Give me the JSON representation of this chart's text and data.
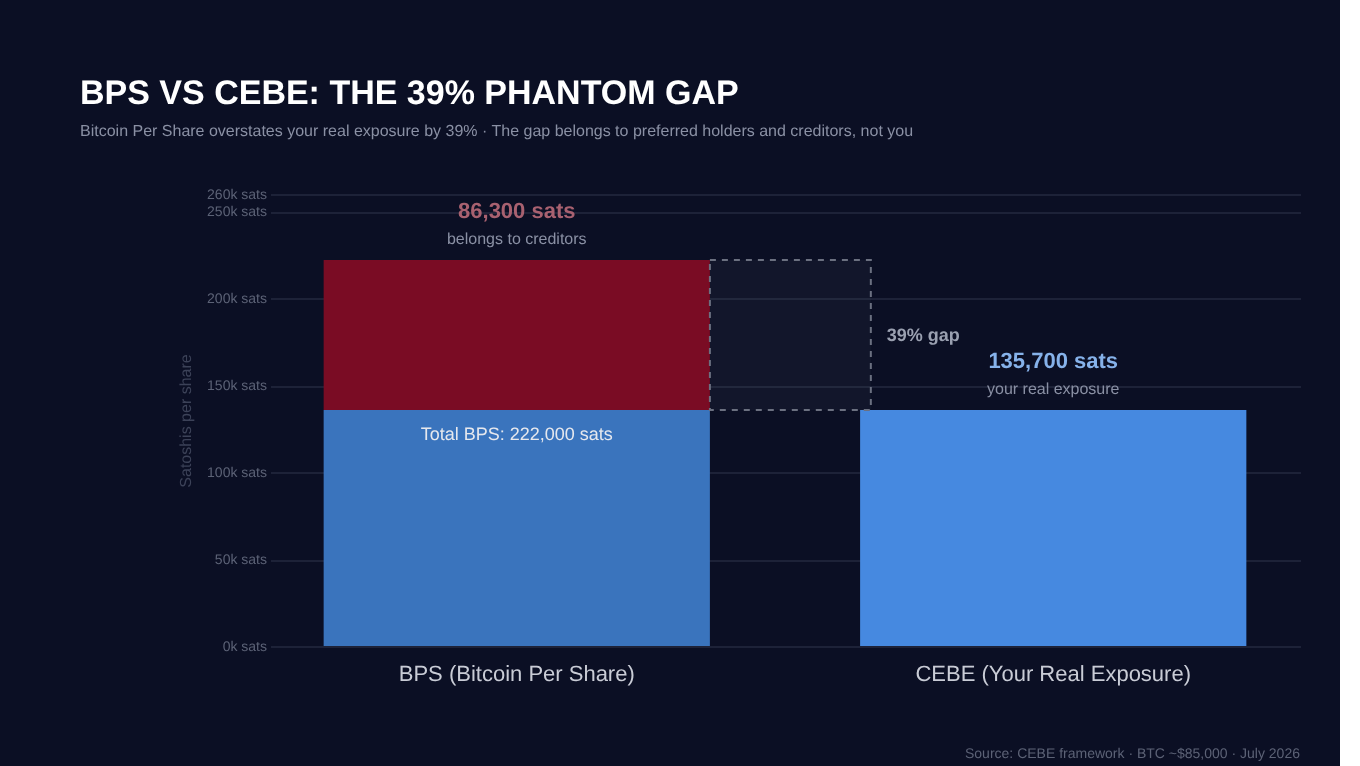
{
  "chart_data": {
    "type": "bar",
    "stacked": true,
    "title": "BPS VS CEBE: THE 39% PHANTOM GAP",
    "subtitle": "Bitcoin Per Share overstates your real exposure by 39% · The gap belongs to preferred holders and creditors, not you",
    "ylabel": "Satoshis per share",
    "categories": [
      "BPS (Bitcoin Per Share)",
      "CEBE (Your Real Exposure)"
    ],
    "series": [
      {
        "colors": [
          "#3a74bd",
          "#4689e0"
        ],
        "values": [
          135700,
          135700
        ],
        "value_labels": [
          null,
          "135,700 sats"
        ]
      },
      {
        "color": "#7a0c24",
        "values": [
          86300,
          null
        ],
        "value_labels": [
          "86,300 sats",
          null
        ]
      }
    ],
    "ylim": [
      0,
      260000
    ],
    "yticks": [
      {
        "value": 0,
        "label": "0k sats"
      },
      {
        "value": 50000,
        "label": "50k sats"
      },
      {
        "value": 100000,
        "label": "100k sats"
      },
      {
        "value": 150000,
        "label": "150k sats"
      },
      {
        "value": 200000,
        "label": "200k sats"
      },
      {
        "value": 250000,
        "label": "250k sats"
      },
      {
        "value": 260000,
        "label": "260k sats"
      }
    ],
    "grid": "y",
    "bands": [
      {
        "axis": "y",
        "from": 135700,
        "to": 222000,
        "label": "39% gap",
        "color": "#6b7080"
      }
    ],
    "annotations": [
      {
        "text": "belongs to creditors",
        "x": "BPS (Bitcoin Per Share)",
        "y": 222000
      },
      {
        "text": "Total BPS: 222,000 sats",
        "x": "BPS (Bitcoin Per Share)",
        "y": 135700
      },
      {
        "text": "your real exposure",
        "x": "CEBE (Your Real Exposure)",
        "y": 135700
      },
      "Source: CEBE framework · BTC ~$85,000 · July 2026"
    ]
  }
}
